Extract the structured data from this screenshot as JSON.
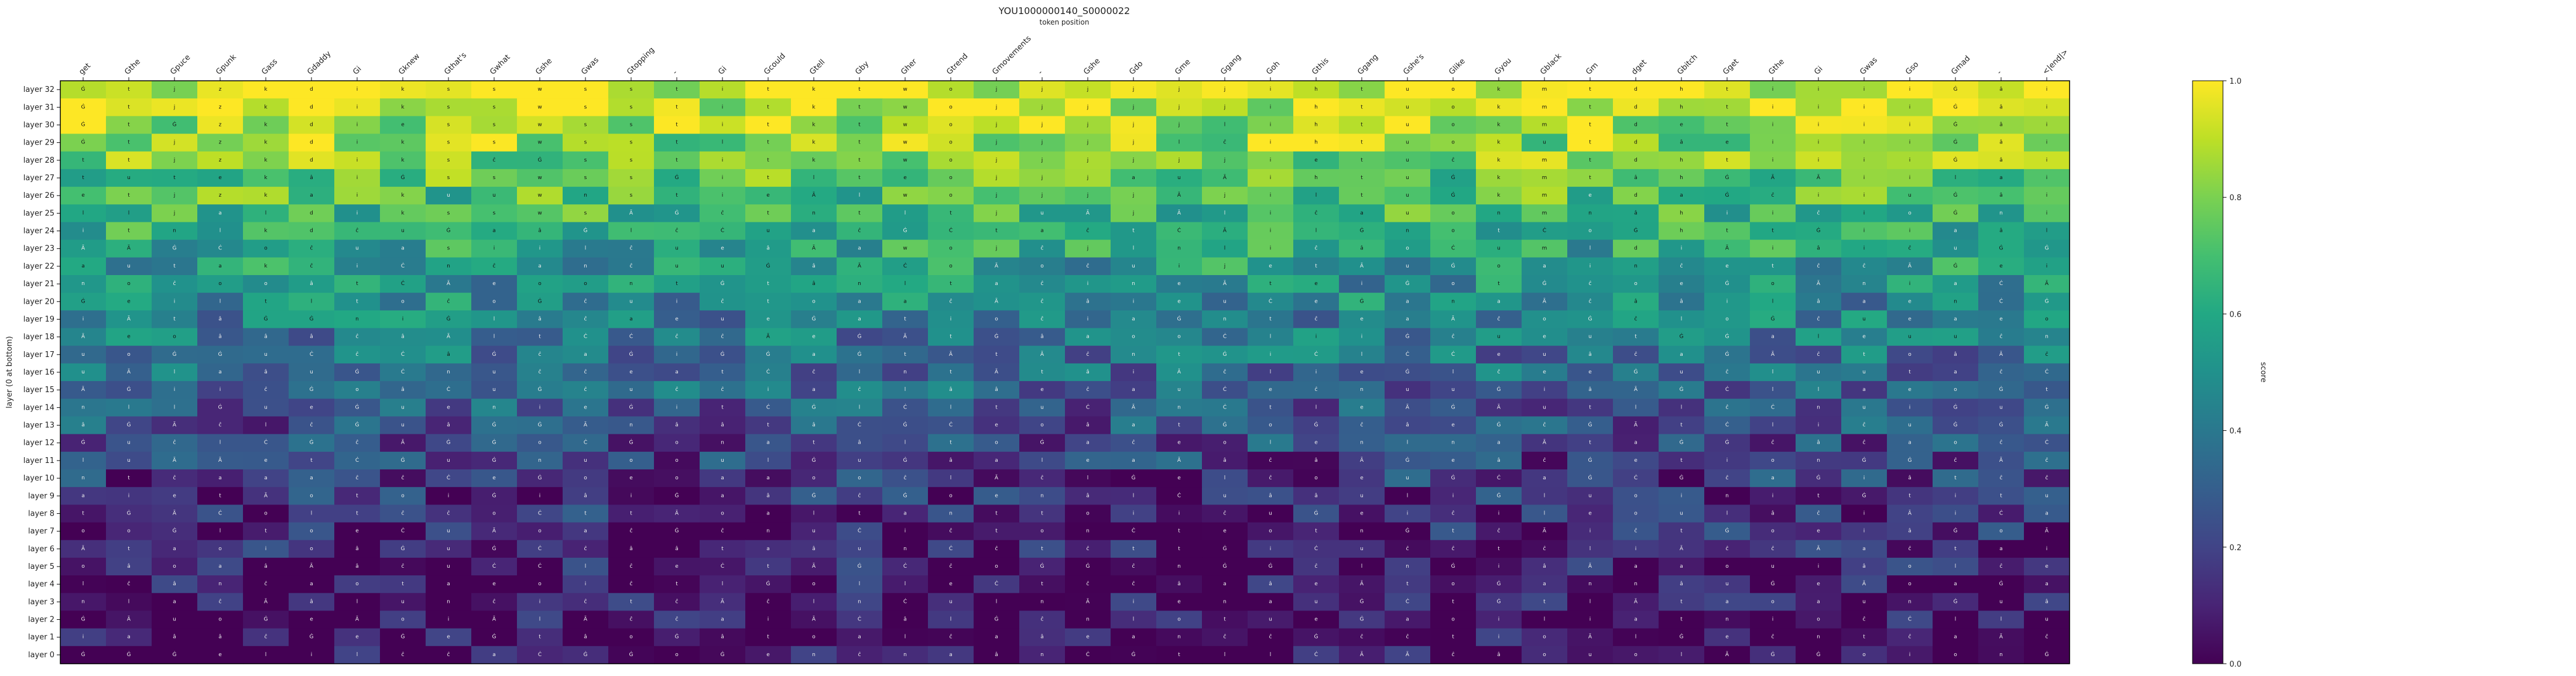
{
  "chart_data": {
    "type": "heatmap",
    "title": "YOU1000000140_S0000022",
    "subtitle": "token position",
    "ylabel": "layer (0 at bottom)",
    "colorbar_label": "score",
    "colormap": "viridis",
    "vlim": [
      0,
      1
    ],
    "colorbar_ticks": [
      "0.0",
      "0.2",
      "0.4",
      "0.6",
      "0.8",
      "1.0"
    ],
    "x_tokens": [
      "get",
      "Gthe",
      "Gpuce",
      "Gpunk",
      "Gass",
      "Gdaddy",
      "Gi",
      "Gknew",
      "Gthat's",
      "Gwhat",
      "Gshe",
      "Gwas",
      "Gtopping",
      "-",
      "Gi",
      "Gcould",
      "Gtell",
      "Gby",
      "Gher",
      "Gtrend",
      "Gmovements",
      "-",
      "Gshe",
      "Gdo",
      "Gme",
      "Ggang",
      "Goh",
      "Gthis",
      "Ggang",
      "Gshe's",
      "Glike",
      "Gyou",
      "Gblack",
      "Gm",
      "dget",
      "Gbitch",
      "Gget",
      "Gthe",
      "Gi",
      "Gwas",
      "Gso",
      "Gmad",
      "-",
      "<|end|>"
    ],
    "layers": [
      "layer 32",
      "layer 31",
      "layer 30",
      "layer 29",
      "layer 28",
      "layer 27",
      "layer 26",
      "layer 25",
      "layer 24",
      "layer 23",
      "layer 22",
      "layer 21",
      "layer 20",
      "layer 19",
      "layer 18",
      "layer 17",
      "layer 16",
      "layer 15",
      "layer 14",
      "layer 13",
      "layer 12",
      "layer 11",
      "layer 10",
      "layer 9",
      "layer 8",
      "layer 7",
      "layer 6",
      "layer 5",
      "layer 4",
      "layer 3",
      "layer 2",
      "layer 1",
      "layer 0"
    ],
    "cell_letters": "ĠtjzkdiksswsstitktwojjjjjjihtuokmtdhtiiiiĠâ",
    "grid_on": false
  }
}
